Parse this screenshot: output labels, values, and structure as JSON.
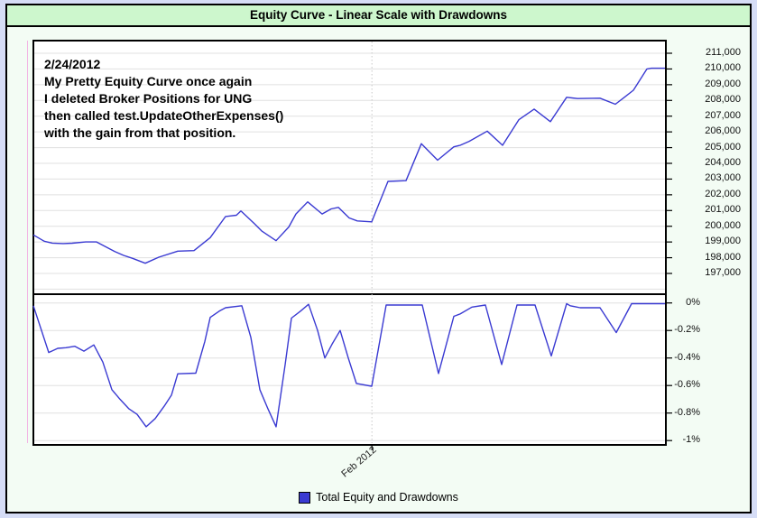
{
  "window": {
    "title": "Equity Curve - Linear Scale with Drawdowns"
  },
  "annotation": {
    "lines": [
      "2/24/2012",
      "My Pretty Equity Curve once again",
      "I deleted Broker Positions for UNG",
      "then called test.UpdateOtherExpenses()",
      "with the gain from that position."
    ]
  },
  "legend": {
    "label": "Total Equity and Drawdowns",
    "swatch_color": "#3a3ad2"
  },
  "colors": {
    "line": "#3a3ad2",
    "grid": "#e0e0e0",
    "title_bg": "#cdf7cd",
    "page_bg": "#f3fcf4",
    "edge": "#d6ddf6",
    "margin_line": "#f2b4e4",
    "feb_gridline": "#c9c9c9"
  },
  "chart_data": {
    "type": "line",
    "title": "Equity Curve - Linear Scale with Drawdowns",
    "legend_entries": [
      "Total Equity and Drawdowns"
    ],
    "x_axis": {
      "tick_labels": [
        "Feb 2012"
      ],
      "tick_positions": [
        0.536
      ]
    },
    "equity_panel": {
      "scale": "linear",
      "ylim": [
        196600,
        211800
      ],
      "tick_values": [
        211000,
        210000,
        209000,
        208000,
        207000,
        206000,
        205000,
        204000,
        203000,
        202000,
        201000,
        200000,
        199000,
        198000,
        197000
      ],
      "tick_labels": [
        "211,000",
        "210,000",
        "209,000",
        "208,000",
        "207,000",
        "206,000",
        "205,000",
        "204,000",
        "203,000",
        "202,000",
        "201,000",
        "200,000",
        "199,000",
        "198,000",
        "197,000"
      ]
    },
    "drawdown_panel": {
      "unit": "percent",
      "ylim": [
        -1.05,
        0
      ],
      "tick_values": [
        0,
        -0.2,
        -0.4,
        -0.6,
        -0.8,
        -1
      ],
      "tick_labels": [
        "0%",
        "-0.2%",
        "-0.4%",
        "-0.6%",
        "-0.8%",
        "-1%"
      ]
    },
    "series": [
      {
        "name": "Total Equity",
        "panel": "equity",
        "points": [
          [
            0,
            199450
          ],
          [
            0.0171,
            199050
          ],
          [
            0.03,
            198930
          ],
          [
            0.0471,
            198900
          ],
          [
            0.0614,
            198920
          ],
          [
            0.0829,
            199000
          ],
          [
            0.1,
            199000
          ],
          [
            0.1143,
            198700
          ],
          [
            0.1286,
            198400
          ],
          [
            0.1429,
            198150
          ],
          [
            0.1571,
            197960
          ],
          [
            0.1771,
            197650
          ],
          [
            0.1986,
            198030
          ],
          [
            0.2286,
            198420
          ],
          [
            0.2543,
            198450
          ],
          [
            0.28,
            199280
          ],
          [
            0.3043,
            200620
          ],
          [
            0.3214,
            200700
          ],
          [
            0.3286,
            200970
          ],
          [
            0.35,
            200160
          ],
          [
            0.3614,
            199700
          ],
          [
            0.3843,
            199080
          ],
          [
            0.4043,
            199950
          ],
          [
            0.4157,
            200780
          ],
          [
            0.4343,
            201550
          ],
          [
            0.4571,
            200780
          ],
          [
            0.4714,
            201100
          ],
          [
            0.4829,
            201200
          ],
          [
            0.5,
            200530
          ],
          [
            0.5129,
            200340
          ],
          [
            0.5357,
            200280
          ],
          [
            0.5614,
            202850
          ],
          [
            0.59,
            202900
          ],
          [
            0.6143,
            205250
          ],
          [
            0.64,
            204200
          ],
          [
            0.6657,
            205050
          ],
          [
            0.6757,
            205150
          ],
          [
            0.69,
            205400
          ],
          [
            0.7186,
            206050
          ],
          [
            0.7429,
            205150
          ],
          [
            0.7686,
            206770
          ],
          [
            0.7929,
            207450
          ],
          [
            0.8186,
            206650
          ],
          [
            0.8443,
            208200
          ],
          [
            0.8614,
            208120
          ],
          [
            0.8971,
            208140
          ],
          [
            0.9214,
            207760
          ],
          [
            0.9357,
            208200
          ],
          [
            0.95,
            208650
          ],
          [
            0.9714,
            210000
          ],
          [
            0.9786,
            210050
          ],
          [
            1,
            210050
          ]
        ]
      },
      {
        "name": "Drawdown",
        "panel": "drawdown",
        "points": [
          [
            0,
            -0.02
          ],
          [
            0.0243,
            -0.36
          ],
          [
            0.0386,
            -0.33
          ],
          [
            0.0514,
            -0.325
          ],
          [
            0.0657,
            -0.315
          ],
          [
            0.08,
            -0.35
          ],
          [
            0.0957,
            -0.305
          ],
          [
            0.11,
            -0.43
          ],
          [
            0.1243,
            -0.63
          ],
          [
            0.1371,
            -0.7
          ],
          [
            0.1514,
            -0.77
          ],
          [
            0.1643,
            -0.81
          ],
          [
            0.1786,
            -0.9
          ],
          [
            0.1929,
            -0.84
          ],
          [
            0.2071,
            -0.75
          ],
          [
            0.2186,
            -0.67
          ],
          [
            0.2286,
            -0.515
          ],
          [
            0.2571,
            -0.51
          ],
          [
            0.2714,
            -0.28
          ],
          [
            0.28,
            -0.105
          ],
          [
            0.2943,
            -0.06
          ],
          [
            0.3043,
            -0.035
          ],
          [
            0.33,
            -0.02
          ],
          [
            0.3443,
            -0.25
          ],
          [
            0.3586,
            -0.63
          ],
          [
            0.3714,
            -0.77
          ],
          [
            0.3843,
            -0.9
          ],
          [
            0.3986,
            -0.45
          ],
          [
            0.4086,
            -0.11
          ],
          [
            0.4229,
            -0.06
          ],
          [
            0.4357,
            -0.01
          ],
          [
            0.45,
            -0.2
          ],
          [
            0.4614,
            -0.4
          ],
          [
            0.4729,
            -0.3
          ],
          [
            0.4857,
            -0.2
          ],
          [
            0.4986,
            -0.4
          ],
          [
            0.5114,
            -0.585
          ],
          [
            0.5357,
            -0.605
          ],
          [
            0.5586,
            -0.015
          ],
          [
            0.6157,
            -0.015
          ],
          [
            0.6414,
            -0.513
          ],
          [
            0.6657,
            -0.097
          ],
          [
            0.6757,
            -0.08
          ],
          [
            0.6943,
            -0.03
          ],
          [
            0.7157,
            -0.015
          ],
          [
            0.7414,
            -0.447
          ],
          [
            0.7657,
            -0.015
          ],
          [
            0.7943,
            -0.015
          ],
          [
            0.82,
            -0.385
          ],
          [
            0.8443,
            -0.005
          ],
          [
            0.85,
            -0.02
          ],
          [
            0.8657,
            -0.035
          ],
          [
            0.8971,
            -0.035
          ],
          [
            0.9229,
            -0.215
          ],
          [
            0.9471,
            -0.005
          ],
          [
            1,
            -0.005
          ]
        ]
      }
    ]
  }
}
